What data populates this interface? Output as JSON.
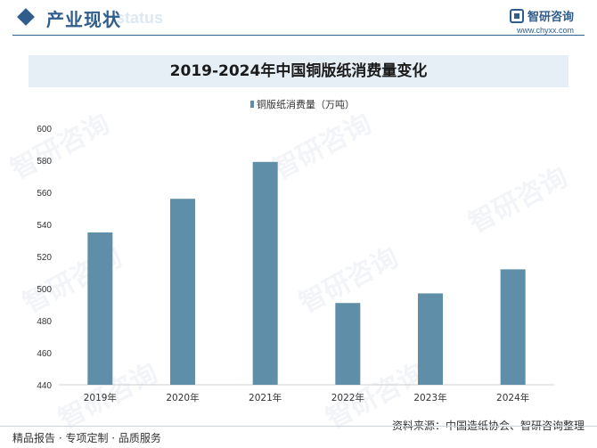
{
  "header": {
    "section_title": "产业现状",
    "background_word": "status",
    "brand_name": "智研咨询",
    "brand_url": "www.chyxx.com"
  },
  "watermark_text": "智研咨询",
  "colors": {
    "accent": "#2f5d8c",
    "bar": "#5f8fa8",
    "title_band": "#e6eef6"
  },
  "chart_data": {
    "type": "bar",
    "title": "2019-2024年中国铜版纸消费量变化",
    "categories": [
      "2019年",
      "2020年",
      "2021年",
      "2022年",
      "2023年",
      "2024年"
    ],
    "series": [
      {
        "name": "铜版纸消费量（万吨）",
        "values": [
          535,
          556,
          579,
          491,
          497,
          512
        ]
      }
    ],
    "yticks": [
      440,
      460,
      480,
      500,
      520,
      540,
      560,
      580,
      600
    ],
    "ylim": [
      440,
      600
    ],
    "xlabel": "",
    "ylabel": "",
    "legend_position": "top-center"
  },
  "footer": {
    "source": "资料来源：中国造纸协会、智研咨询整理",
    "tagline": "精品报告 · 专项定制 · 品质服务"
  }
}
